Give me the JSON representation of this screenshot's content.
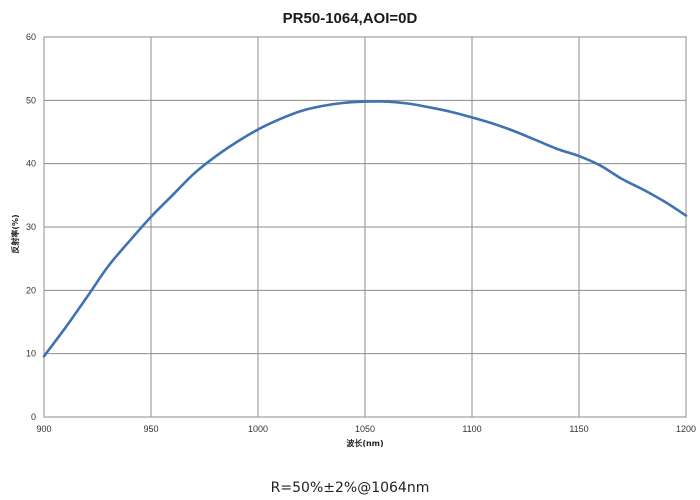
{
  "chart_data": {
    "type": "line",
    "title": "PR50-1064,AOI=0D",
    "xlabel": "波长(nm)",
    "ylabel": "反射率(%)",
    "xlim": [
      900,
      1200
    ],
    "ylim": [
      0,
      60
    ],
    "x_ticks": [
      "900",
      "950",
      "1000",
      "1050",
      "1100",
      "1150",
      "1200"
    ],
    "y_ticks": [
      "0",
      "10",
      "20",
      "30",
      "40",
      "50",
      "60"
    ],
    "grid": true,
    "legend": "none",
    "line_color": "#3f72b1",
    "series": [
      {
        "x": [
          900,
          910,
          920,
          930,
          940,
          950,
          960,
          970,
          980,
          990,
          1000,
          1010,
          1020,
          1030,
          1040,
          1050,
          1060,
          1070,
          1080,
          1090,
          1100,
          1110,
          1120,
          1130,
          1140,
          1150,
          1160,
          1170,
          1180,
          1190,
          1200
        ],
        "values": [
          9.6,
          14.1,
          18.9,
          23.8,
          27.8,
          31.6,
          35.0,
          38.4,
          41.1,
          43.4,
          45.4,
          47.0,
          48.3,
          49.1,
          49.6,
          49.8,
          49.8,
          49.5,
          48.9,
          48.2,
          47.3,
          46.3,
          45.1,
          43.7,
          42.3,
          41.2,
          39.7,
          37.6,
          35.9,
          34.0,
          31.8
        ]
      }
    ]
  },
  "caption": "R=50%±2%@1064nm"
}
